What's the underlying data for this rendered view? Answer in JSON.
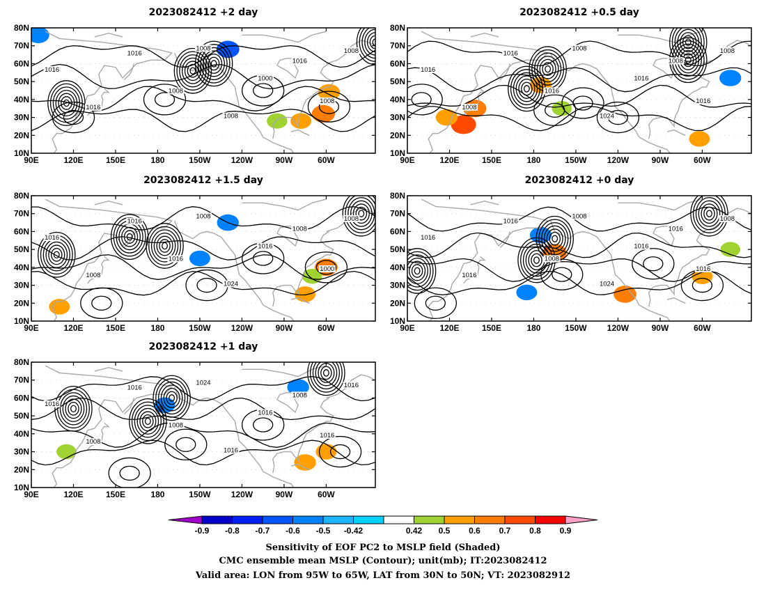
{
  "panels": [
    {
      "title": "2023082412 +2 day",
      "isobar_labels": [
        "1016",
        "1016",
        "1016",
        "1008",
        "1008",
        "1008",
        "1000",
        "1016",
        "1008",
        "1008"
      ],
      "lows": [
        [
          -155,
          56
        ],
        [
          -140,
          60
        ],
        [
          -25,
          72
        ],
        [
          115,
          38
        ]
      ],
      "highs": [
        [
          -175,
          40
        ],
        [
          -105,
          45
        ],
        [
          -58,
          36
        ],
        [
          120,
          30
        ]
      ],
      "shading": [
        {
          "lon": -62,
          "lat": 32,
          "v": 0.62
        },
        {
          "lon": -58,
          "lat": 44,
          "v": 0.55
        },
        {
          "lon": -78,
          "lat": 28,
          "v": 0.5
        },
        {
          "lon": -95,
          "lat": 28,
          "v": 0.48
        },
        {
          "lon": -130,
          "lat": 68,
          "v": -0.6
        },
        {
          "lon": 95,
          "lat": 76,
          "v": -0.55
        }
      ]
    },
    {
      "title": "2023082412 +0.5 day",
      "isobar_labels": [
        "1016",
        "1008",
        "1016",
        "1016",
        "1008",
        "1024",
        "1016",
        "1008",
        "1016",
        "1008"
      ],
      "lows": [
        [
          -185,
          46
        ],
        [
          -170,
          57
        ],
        [
          -70,
          62
        ],
        [
          -70,
          72
        ]
      ],
      "highs": [
        [
          -165,
          34
        ],
        [
          -145,
          38
        ],
        [
          -120,
          30
        ],
        [
          100,
          40
        ]
      ],
      "shading": [
        {
          "lon": 130,
          "lat": 26,
          "v": 0.72
        },
        {
          "lon": 138,
          "lat": 35,
          "v": 0.62
        },
        {
          "lon": 118,
          "lat": 30,
          "v": 0.55
        },
        {
          "lon": -175,
          "lat": 48,
          "v": 0.55
        },
        {
          "lon": -160,
          "lat": 35,
          "v": 0.45
        },
        {
          "lon": -62,
          "lat": 18,
          "v": 0.5
        },
        {
          "lon": -40,
          "lat": 52,
          "v": -0.55
        }
      ]
    },
    {
      "title": "2023082412 +1.5 day",
      "isobar_labels": [
        "1016",
        "1008",
        "1016",
        "1016",
        "1008",
        "1024",
        "1016",
        "1008",
        "1000",
        "1008"
      ],
      "lows": [
        [
          -175,
          52
        ],
        [
          -35,
          70
        ],
        [
          108,
          47
        ],
        [
          160,
          57
        ]
      ],
      "highs": [
        [
          -145,
          30
        ],
        [
          -105,
          45
        ],
        [
          -60,
          40
        ],
        [
          140,
          20
        ]
      ],
      "shading": [
        {
          "lon": -60,
          "lat": 40,
          "v": 0.6
        },
        {
          "lon": -75,
          "lat": 25,
          "v": 0.5
        },
        {
          "lon": -70,
          "lat": 35,
          "v": 0.45
        },
        {
          "lon": -130,
          "lat": 65,
          "v": -0.55
        },
        {
          "lon": -150,
          "lat": 45,
          "v": -0.5
        },
        {
          "lon": 110,
          "lat": 18,
          "v": 0.5
        }
      ]
    },
    {
      "title": "2023082412 +0 day",
      "isobar_labels": [
        "1016",
        "1016",
        "1016",
        "1008",
        "1008",
        "1024",
        "1016",
        "1016",
        "1016",
        "1008"
      ],
      "lows": [
        [
          -178,
          44
        ],
        [
          -165,
          56
        ],
        [
          -55,
          70
        ],
        [
          97,
          38
        ]
      ],
      "highs": [
        [
          -160,
          36
        ],
        [
          -95,
          42
        ],
        [
          -60,
          30
        ],
        [
          110,
          20
        ]
      ],
      "shading": [
        {
          "lon": -165,
          "lat": 48,
          "v": 0.65
        },
        {
          "lon": -115,
          "lat": 25,
          "v": 0.6
        },
        {
          "lon": -60,
          "lat": 35,
          "v": 0.5
        },
        {
          "lon": -40,
          "lat": 50,
          "v": 0.45
        },
        {
          "lon": -175,
          "lat": 58,
          "v": -0.55
        },
        {
          "lon": -185,
          "lat": 26,
          "v": -0.5
        }
      ]
    },
    {
      "title": "2023082412 +1 day",
      "isobar_labels": [
        "1016",
        "1008",
        "1016",
        "1008",
        "1024",
        "1016",
        "1016",
        "1008",
        "1016",
        "1016"
      ],
      "lows": [
        [
          -187,
          47
        ],
        [
          -170,
          60
        ],
        [
          -60,
          74
        ],
        [
          120,
          54
        ]
      ],
      "highs": [
        [
          -160,
          34
        ],
        [
          -105,
          45
        ],
        [
          -50,
          30
        ],
        [
          160,
          18
        ]
      ],
      "shading": [
        {
          "lon": -75,
          "lat": 24,
          "v": 0.55
        },
        {
          "lon": -60,
          "lat": 30,
          "v": 0.5
        },
        {
          "lon": 115,
          "lat": 30,
          "v": 0.45
        },
        {
          "lon": -80,
          "lat": 66,
          "v": -0.55
        },
        {
          "lon": -175,
          "lat": 56,
          "v": -0.5
        }
      ]
    }
  ],
  "map": {
    "lon_ticks": [
      "90E",
      "120E",
      "150E",
      "180",
      "150W",
      "120W",
      "90W",
      "60W"
    ],
    "lat_ticks": [
      "10N",
      "20N",
      "30N",
      "40N",
      "50N",
      "60N",
      "70N",
      "80N"
    ]
  },
  "colorbar": {
    "ticks": [
      "-0.9",
      "-0.8",
      "-0.7",
      "-0.6",
      "-0.5",
      "-0.42",
      "0.42",
      "0.5",
      "0.6",
      "0.7",
      "0.8",
      "0.9"
    ],
    "colors": [
      "#a000c8",
      "#0000c8",
      "#0020ff",
      "#0055ff",
      "#0082ff",
      "#1eb4ff",
      "#00d2ff",
      "#ffffff",
      "#a0d232",
      "#ffa000",
      "#ff7d00",
      "#ff4b00",
      "#ff0000",
      "#ffa0c8"
    ]
  },
  "caption": [
    "Sensitivity of EOF PC2 to MSLP field (Shaded)",
    "CMC ensemble mean MSLP (Contour); unit(mb); IT:2023082412",
    "Valid area: LON from 95W to 65W, LAT from 30N to 50N; VT: 2023082912"
  ]
}
